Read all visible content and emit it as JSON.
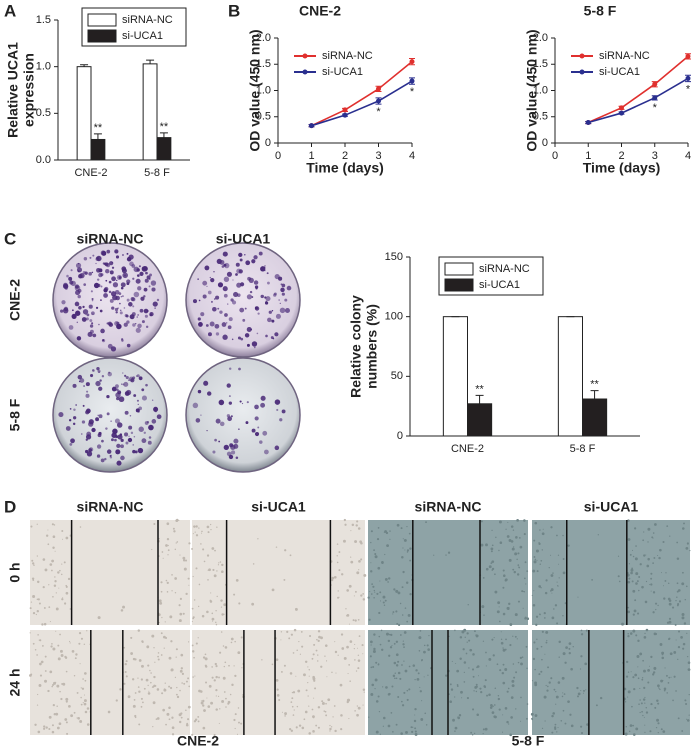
{
  "figure": {
    "labels": [
      "A",
      "B",
      "C",
      "D"
    ],
    "colony": {
      "columns": [
        "siRNA-NC",
        "si-UCA1"
      ],
      "rows": [
        "CNE-2",
        "5-8 F"
      ]
    },
    "wound": {
      "columns": [
        "siRNA-NC",
        "si-UCA1",
        "siRNA-NC",
        "si-UCA1"
      ],
      "rows": [
        "0 h",
        "24 h"
      ],
      "groups": [
        "CNE-2",
        "5-8 F"
      ]
    }
  },
  "chart_data": [
    {
      "type": "bar",
      "ylabel": [
        "Relative UCA1",
        "expression"
      ],
      "categories": [
        "CNE-2",
        "5-8 F"
      ],
      "series": [
        {
          "name": "siRNA-NC",
          "color": "#ffffff",
          "values": [
            1.0,
            1.03
          ],
          "errors": [
            0.02,
            0.04
          ]
        },
        {
          "name": "si-UCA1",
          "color": "#231f20",
          "values": [
            0.22,
            0.24
          ],
          "errors": [
            0.06,
            0.05
          ],
          "significance": [
            "**",
            "**"
          ]
        }
      ],
      "ylim": [
        0,
        1.5
      ],
      "yticks": [
        {
          "value": 0,
          "label": "0.0"
        },
        0.5,
        {
          "value": 1,
          "label": "1.0"
        },
        1.5
      ]
    },
    {
      "type": "line",
      "title": "CNE-2",
      "xlabel": "Time (days)",
      "ylabel": [
        "OD value (450 nm)"
      ],
      "x": [
        1,
        2,
        3,
        4
      ],
      "series": [
        {
          "name": "siRNA-NC",
          "color": "#e0302e",
          "values": [
            0.33,
            0.63,
            1.03,
            1.55
          ],
          "errors": [
            0.02,
            0.03,
            0.05,
            0.06
          ]
        },
        {
          "name": "si-UCA1",
          "color": "#2a2f8f",
          "values": [
            0.33,
            0.53,
            0.8,
            1.18
          ],
          "errors": [
            0.02,
            0.02,
            0.06,
            0.06
          ],
          "significance": [
            null,
            null,
            "*",
            "*"
          ]
        }
      ],
      "xlim": [
        0,
        4
      ],
      "xticks": [
        0,
        1,
        2,
        3,
        4
      ],
      "ylim": [
        0,
        2
      ],
      "yticks": [
        0,
        0.5,
        {
          "value": 1,
          "label": "1.0"
        },
        1.5,
        {
          "value": 2,
          "label": "2.0"
        }
      ]
    },
    {
      "type": "line",
      "title": "5-8 F",
      "xlabel": "Time (days)",
      "ylabel": [
        "OD value (450 nm)"
      ],
      "x": [
        1,
        2,
        3,
        4
      ],
      "series": [
        {
          "name": "siRNA-NC",
          "color": "#e0302e",
          "values": [
            0.39,
            0.67,
            1.12,
            1.65
          ],
          "errors": [
            0.02,
            0.03,
            0.05,
            0.05
          ]
        },
        {
          "name": "si-UCA1",
          "color": "#2a2f8f",
          "values": [
            0.39,
            0.57,
            0.86,
            1.23
          ],
          "errors": [
            0.02,
            0.02,
            0.04,
            0.06
          ],
          "significance": [
            null,
            null,
            "*",
            "*"
          ]
        }
      ],
      "xlim": [
        0,
        4
      ],
      "xticks": [
        0,
        1,
        2,
        3,
        4
      ],
      "ylim": [
        0,
        2
      ],
      "yticks": [
        0,
        0.5,
        {
          "value": 1,
          "label": "1.0"
        },
        1.5,
        {
          "value": 2,
          "label": "2.0"
        }
      ]
    },
    {
      "type": "bar",
      "ylabel": [
        "Relative colony",
        "numbers (%)"
      ],
      "categories": [
        "CNE-2",
        "5-8 F"
      ],
      "series": [
        {
          "name": "siRNA-NC",
          "color": "#ffffff",
          "values": [
            100,
            100
          ],
          "errors": [
            0,
            0
          ]
        },
        {
          "name": "si-UCA1",
          "color": "#231f20",
          "values": [
            27,
            31
          ],
          "errors": [
            7,
            7
          ],
          "significance": [
            "**",
            "**"
          ]
        }
      ],
      "ylim": [
        0,
        150
      ],
      "yticks": [
        0,
        50,
        100,
        150
      ]
    }
  ]
}
